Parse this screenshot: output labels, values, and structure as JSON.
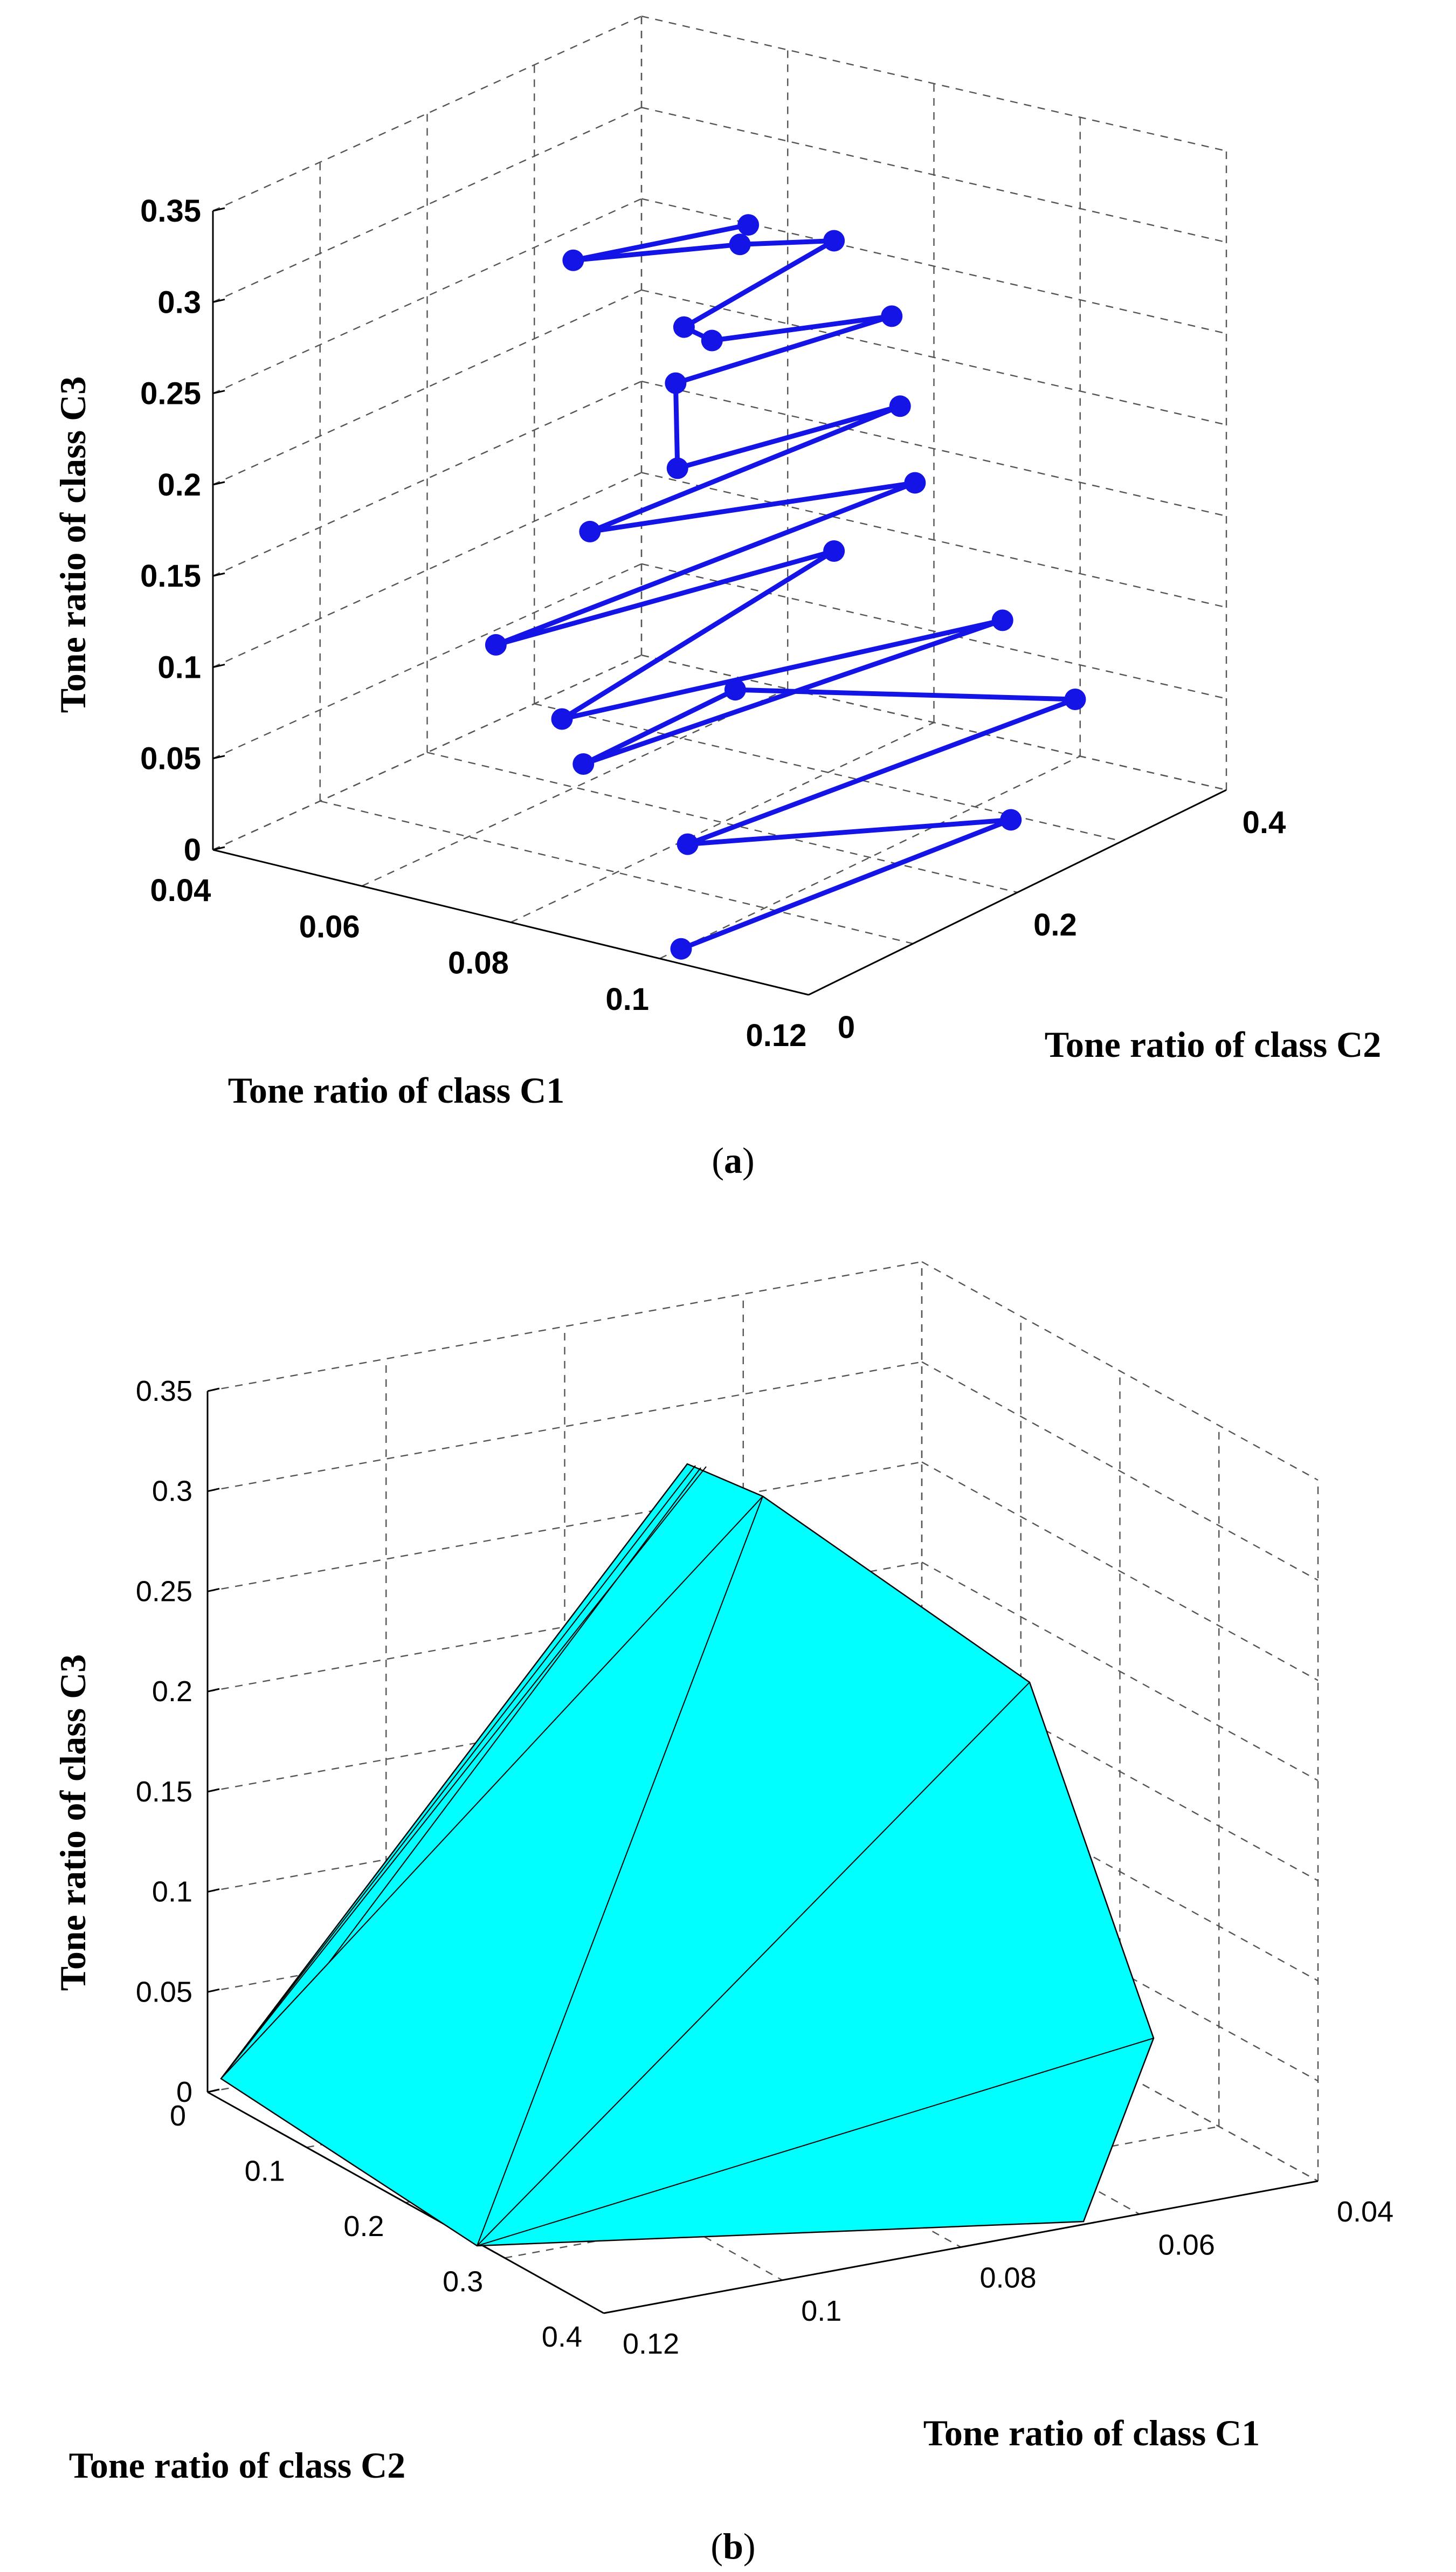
{
  "chart_data": [
    {
      "type": "line3d",
      "panel": "a",
      "caption_letter": "a",
      "zlabel": "Tone ratio of class C3",
      "xlabel": "Tone ratio of class C1",
      "ylabel": "Tone ratio of class C2",
      "xticks": [
        "0.04",
        "0.06",
        "0.08",
        "0.1",
        "0.12"
      ],
      "yticks": [
        "0",
        "0.2",
        "0.4"
      ],
      "zticks": [
        "0",
        "0.05",
        "0.1",
        "0.15",
        "0.2",
        "0.25",
        "0.3",
        "0.35"
      ],
      "xlim": [
        0.04,
        0.12
      ],
      "ylim": [
        0,
        0.4
      ],
      "zlim": [
        0,
        0.35
      ],
      "marker": "circle",
      "color": "#1414e6",
      "points": [
        [
          0.1,
          0.02,
          0.0
        ],
        [
          0.104,
          0.3,
          0.0
        ],
        [
          0.098,
          0.04,
          0.05
        ],
        [
          0.104,
          0.36,
          0.05
        ],
        [
          0.09,
          0.14,
          0.1
        ],
        [
          0.084,
          0.04,
          0.08
        ],
        [
          0.1,
          0.32,
          0.1
        ],
        [
          0.084,
          0.02,
          0.11
        ],
        [
          0.086,
          0.26,
          0.14
        ],
        [
          0.078,
          0.0,
          0.15
        ],
        [
          0.094,
          0.28,
          0.18
        ],
        [
          0.082,
          0.06,
          0.2
        ],
        [
          0.092,
          0.28,
          0.22
        ],
        [
          0.088,
          0.1,
          0.23
        ],
        [
          0.082,
          0.14,
          0.26
        ],
        [
          0.088,
          0.3,
          0.26
        ],
        [
          0.084,
          0.16,
          0.28
        ],
        [
          0.086,
          0.12,
          0.3
        ],
        [
          0.086,
          0.26,
          0.31
        ],
        [
          0.082,
          0.2,
          0.32
        ],
        [
          0.074,
          0.1,
          0.33
        ],
        [
          0.086,
          0.18,
          0.34
        ]
      ]
    },
    {
      "type": "surface3d",
      "panel": "b",
      "caption_letter": "b",
      "zlabel": "Tone ratio of class C3",
      "xlabel": "Tone ratio of class C1",
      "ylabel": "Tone ratio of class C2",
      "xticks": [
        "0.04",
        "0.06",
        "0.08",
        "0.1",
        "0.12"
      ],
      "yticks": [
        "0",
        "0.1",
        "0.2",
        "0.3",
        "0.4"
      ],
      "zticks": [
        "0",
        "0.05",
        "0.1",
        "0.15",
        "0.2",
        "0.25",
        "0.3",
        "0.35"
      ],
      "xlim": [
        0.04,
        0.12
      ],
      "ylim": [
        0,
        0.4
      ],
      "zlim": [
        0,
        0.35
      ],
      "color": "#00ffff",
      "edge_color": "#000000",
      "description": "Convex hull of the tone-ratio points"
    }
  ]
}
